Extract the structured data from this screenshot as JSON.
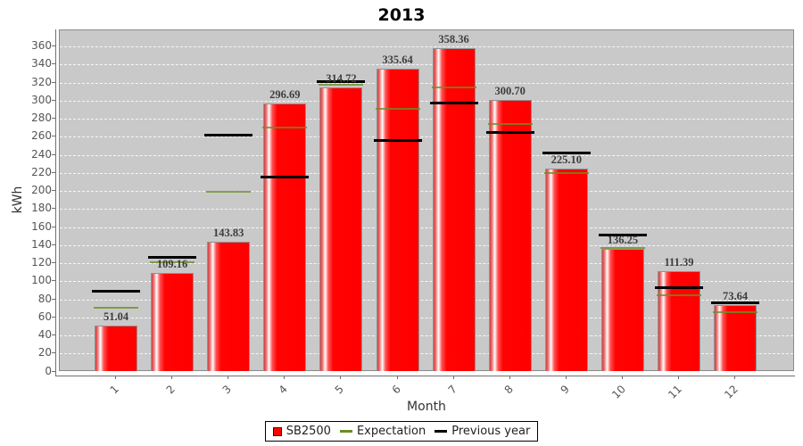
{
  "chart_data": {
    "type": "bar",
    "title": "2013",
    "xlabel": "Month",
    "ylabel": "kWh",
    "ylim": [
      0,
      378
    ],
    "yticks": [
      0,
      20,
      40,
      60,
      80,
      100,
      120,
      140,
      160,
      180,
      200,
      220,
      240,
      260,
      280,
      300,
      320,
      340,
      360
    ],
    "grid": "horizontal dashed white on gray plot background",
    "legend_position": "bottom-center",
    "categories": [
      "1",
      "2",
      "3",
      "4",
      "5",
      "6",
      "7",
      "8",
      "9",
      "10",
      "11",
      "12"
    ],
    "bar_series": {
      "name": "SB2500",
      "color": "#ff0000",
      "values": [
        51.04,
        109.16,
        143.83,
        296.69,
        314.72,
        335.64,
        358.36,
        300.7,
        225.1,
        136.25,
        111.39,
        73.64
      ],
      "value_labels": [
        "51.04",
        "109.16",
        "143.83",
        "296.69",
        "314.72",
        "335.64",
        "358.36",
        "300.70",
        "225.10",
        "136.25",
        "111.39",
        "73.64"
      ]
    },
    "marker_series": [
      {
        "name": "Expectation",
        "color": "#6b8e23",
        "style": "horizontal-line",
        "values": [
          71,
          121,
          199,
          270,
          318,
          291,
          315,
          274,
          220,
          137,
          84,
          66
        ]
      },
      {
        "name": "Previous year",
        "color": "#000000",
        "style": "horizontal-line",
        "values": [
          89,
          126,
          262,
          215,
          321,
          256,
          297,
          265,
          242,
          151,
          93,
          76
        ]
      }
    ]
  },
  "colors": {
    "plot_bg": "#c9c9c9",
    "gridline": "#ffffff",
    "bar": "#ff0000",
    "expectation": "#6b8e23",
    "previous_year": "#000000",
    "tick_label": "#555555",
    "value_label": "#3d3d3d"
  }
}
